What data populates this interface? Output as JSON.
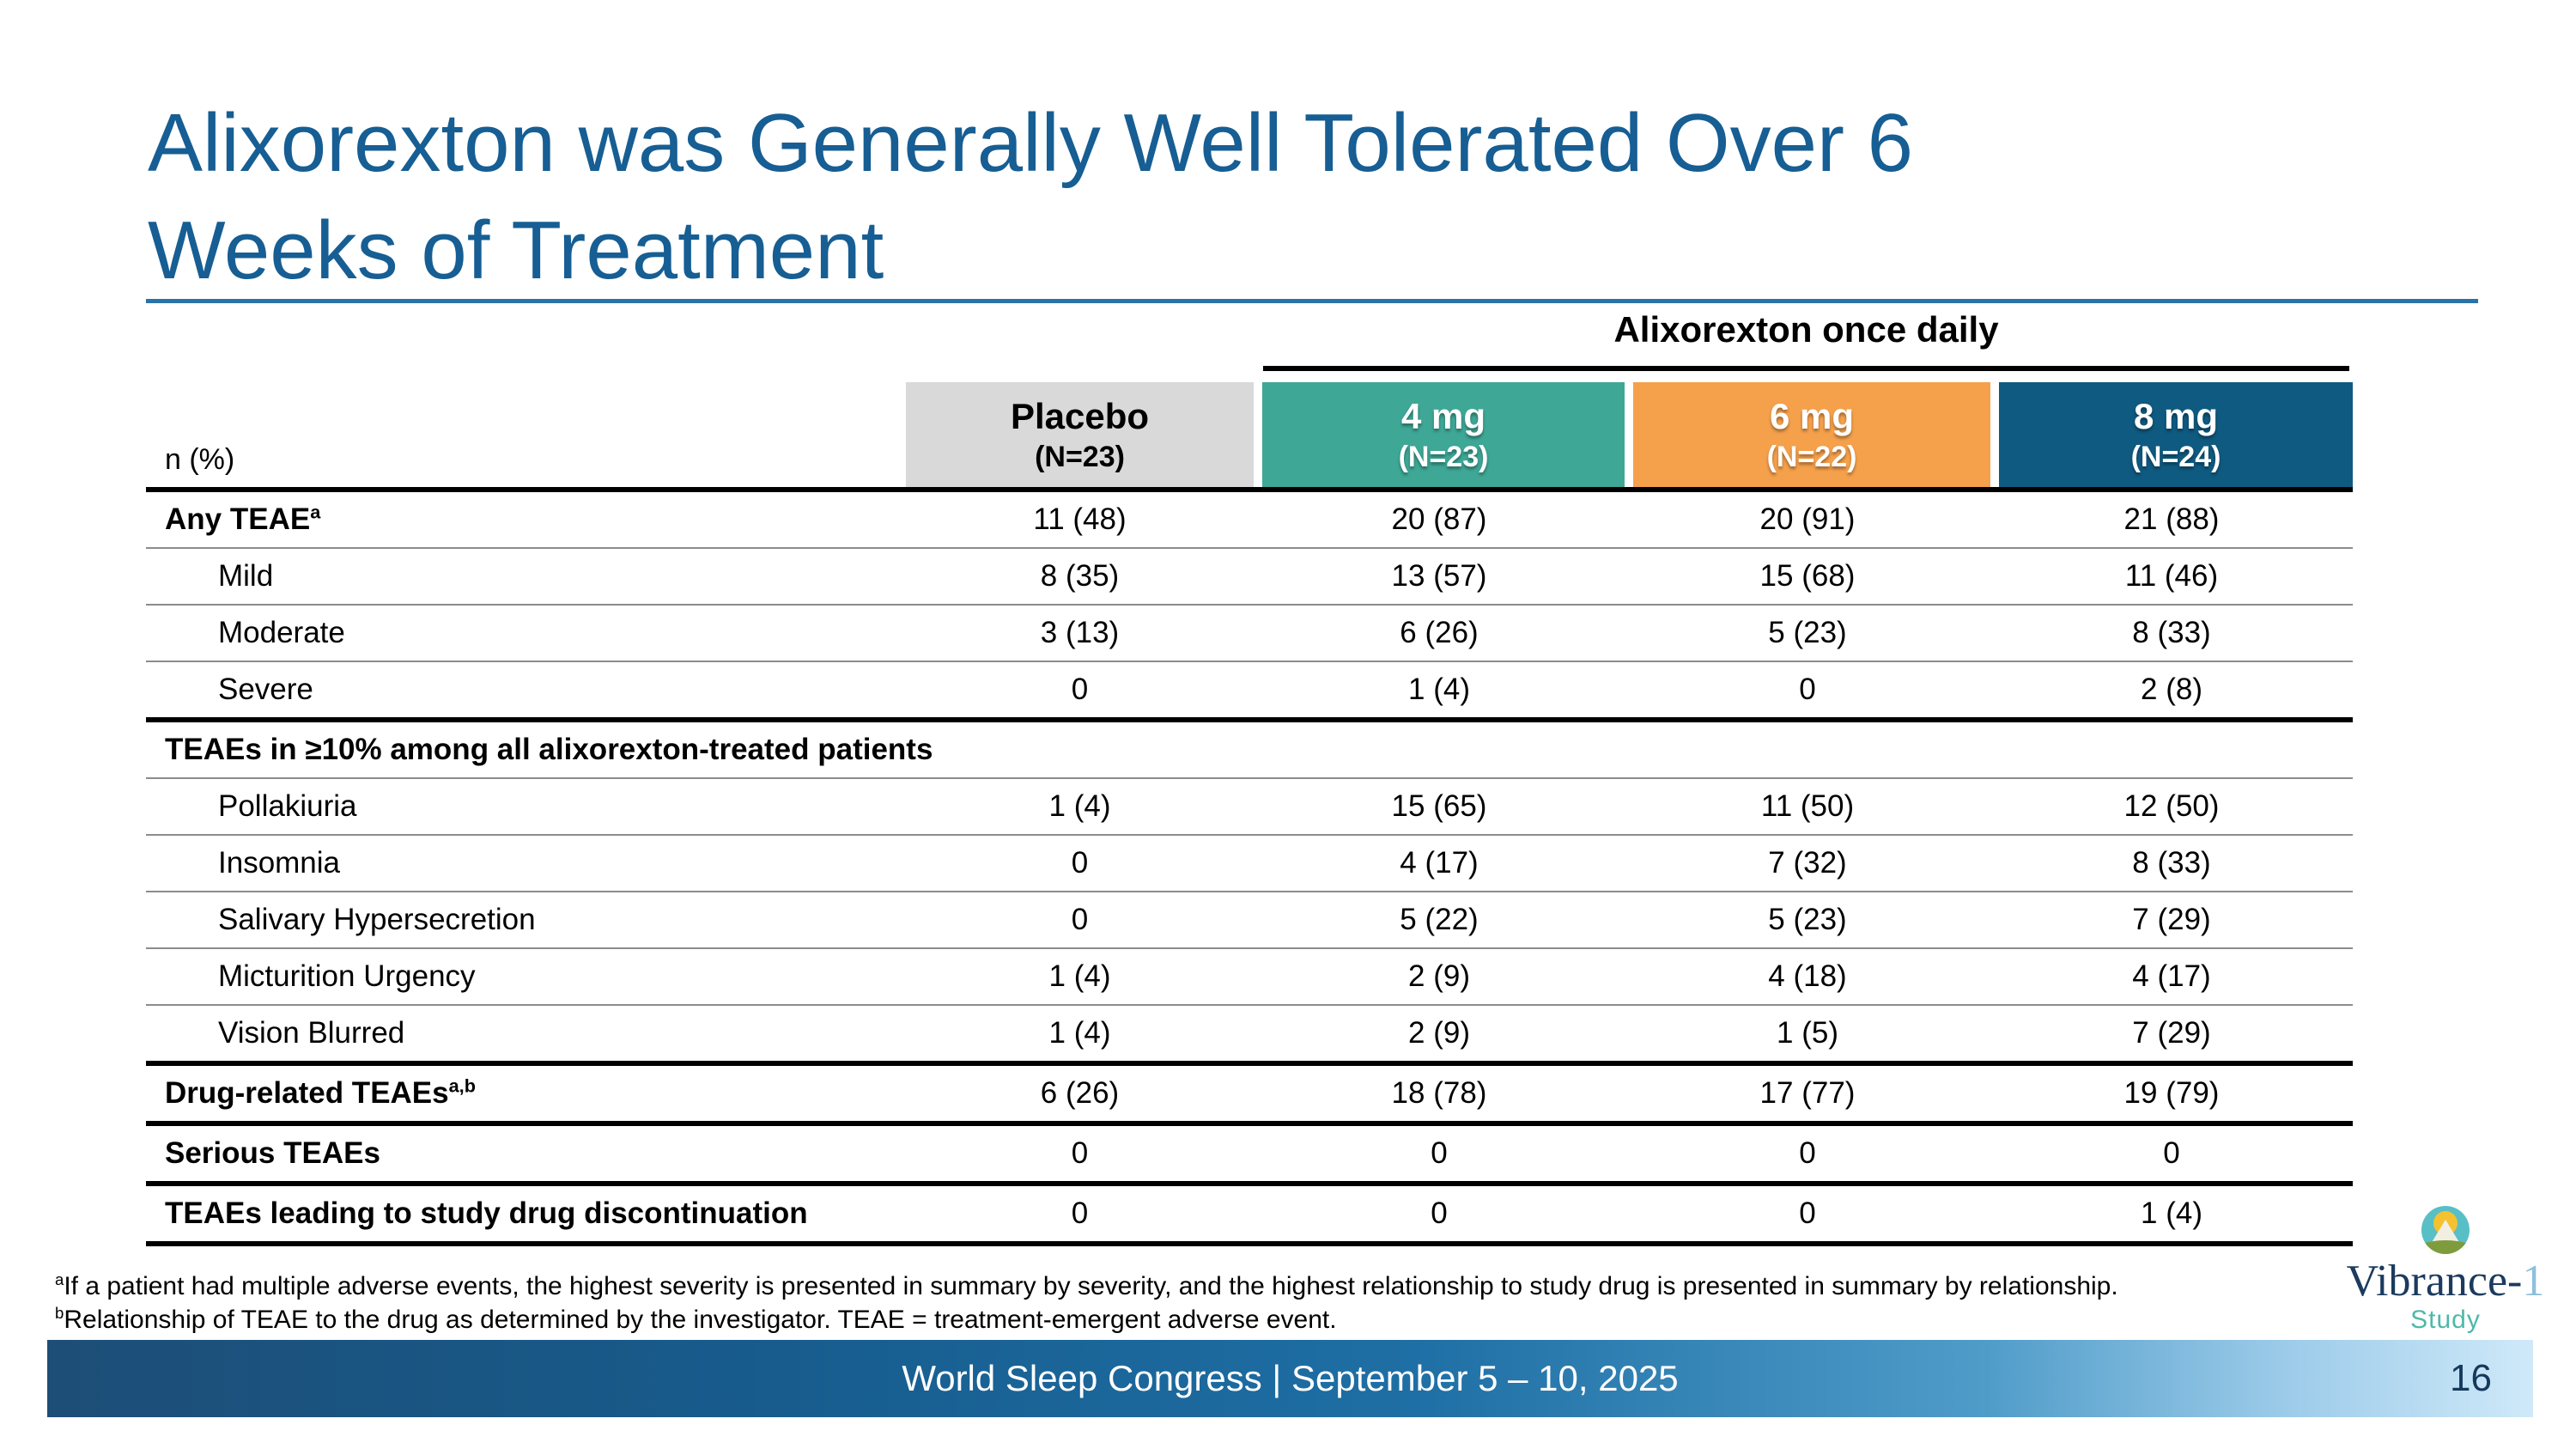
{
  "slide": {
    "title_line1": "Alixorexton was Generally Well Tolerated Over 6",
    "title_line2": "Weeks of Treatment"
  },
  "table": {
    "group_header": "Alixorexton once daily",
    "row_label_header": "n (%)",
    "columns": [
      {
        "label": "Placebo",
        "n": "(N=23)",
        "color": "#D9D9D9"
      },
      {
        "label": "4 mg",
        "n": "(N=23)",
        "color": "#3EA796"
      },
      {
        "label": "6 mg",
        "n": "(N=22)",
        "color": "#F5A04B"
      },
      {
        "label": "8 mg",
        "n": "(N=24)",
        "color": "#0F5A80"
      }
    ],
    "rows": [
      {
        "label": "Any TEAE",
        "sup": "a",
        "values": [
          "11 (48)",
          "20 (87)",
          "20 (91)",
          "21 (88)"
        ]
      },
      {
        "label": "Mild",
        "values": [
          "8 (35)",
          "13 (57)",
          "15 (68)",
          "11 (46)"
        ]
      },
      {
        "label": "Moderate",
        "values": [
          "3 (13)",
          "6 (26)",
          "5 (23)",
          "8 (33)"
        ]
      },
      {
        "label": "Severe",
        "values": [
          "0",
          "1 (4)",
          "0",
          "2 (8)"
        ]
      },
      {
        "label": "TEAEs in ≥10% among all alixorexton-treated patients",
        "values": []
      },
      {
        "label": "Pollakiuria",
        "values": [
          "1 (4)",
          "15 (65)",
          "11 (50)",
          "12 (50)"
        ]
      },
      {
        "label": "Insomnia",
        "values": [
          "0",
          "4 (17)",
          "7 (32)",
          "8 (33)"
        ]
      },
      {
        "label": "Salivary Hypersecretion",
        "values": [
          "0",
          "5 (22)",
          "5 (23)",
          "7 (29)"
        ]
      },
      {
        "label": "Micturition Urgency",
        "values": [
          "1 (4)",
          "2 (9)",
          "4 (18)",
          "4 (17)"
        ]
      },
      {
        "label": "Vision Blurred",
        "values": [
          "1 (4)",
          "2 (9)",
          "1 (5)",
          "7 (29)"
        ]
      },
      {
        "label": "Drug-related TEAEs",
        "sup": "a,b",
        "values": [
          "6 (26)",
          "18 (78)",
          "17 (77)",
          "19 (79)"
        ]
      },
      {
        "label": "Serious TEAEs",
        "values": [
          "0",
          "0",
          "0",
          "0"
        ]
      },
      {
        "label": "TEAEs leading to study drug discontinuation",
        "values": [
          "0",
          "0",
          "0",
          "1 (4)"
        ]
      }
    ]
  },
  "footnotes": {
    "a_sup": "a",
    "a_text": "If a patient had multiple adverse events, the highest severity is presented in summary by severity, and the highest relationship to study drug is presented in summary by relationship.",
    "b_sup": "b",
    "b_text": "Relationship of TEAE to the drug as determined by the investigator. TEAE = treatment-emergent adverse event."
  },
  "footer": {
    "text": "World Sleep Congress | September 5 – 10, 2025",
    "page": "16"
  },
  "logo": {
    "name_main": "Vibrance-",
    "name_suffix": "1",
    "sub": "Study"
  },
  "colors": {
    "title_blue": "#165E93",
    "title_rule_blue": "#2973A8",
    "placebo_gray": "#D9D9D9",
    "dose4_teal": "#3EA796",
    "dose6_orange": "#F5A04B",
    "dose8_blue": "#0F5A80",
    "footer_dark_blue": "#1d4e77",
    "footer_light_blue": "#cfe9f9",
    "page_number_navy": "#14395B"
  }
}
